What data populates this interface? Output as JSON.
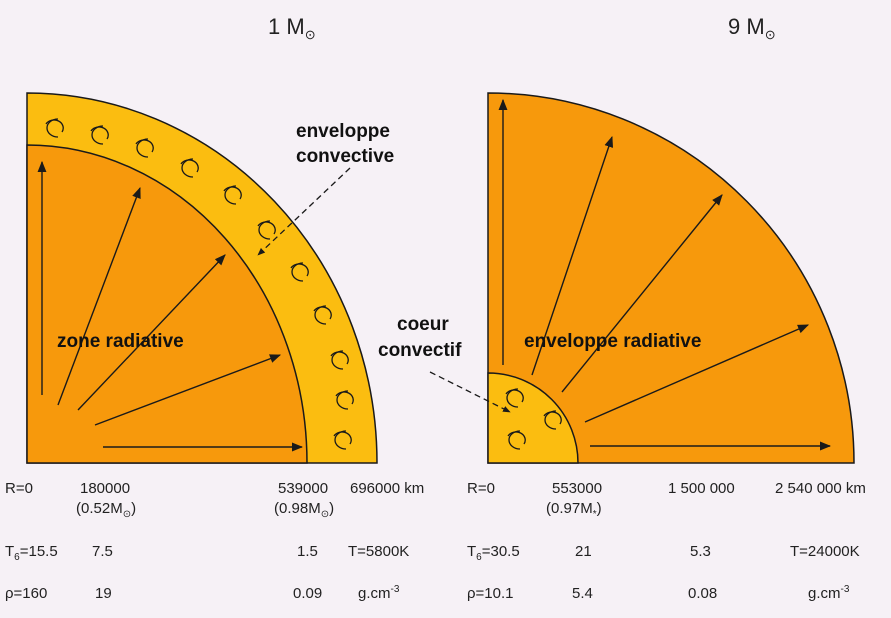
{
  "colors": {
    "background": "#f6f1f6",
    "radiative_zone": "#f7990c",
    "convective_zone": "#fbbd10",
    "outline": "#1a1a1a"
  },
  "left_star": {
    "title_main": "1 M",
    "sun_symbol": "⊙",
    "inner_label": "zone radiative",
    "outer_label_line1": "enveloppe",
    "outer_label_line2": "convective",
    "radii_row": {
      "r0": "R=0",
      "r1": "180000",
      "r1_mass": "(0.52M",
      "r1_mass_end": ")",
      "r2": "539000",
      "r2_mass": "(0.98M",
      "r2_mass_end": ")",
      "r3": "696000 km"
    },
    "temperature_row": {
      "t_symbol": "T",
      "t_sub": "6",
      "t0": "=15.5",
      "t1": "7.5",
      "t2": "1.5",
      "t3": "T=5800K"
    },
    "density_row": {
      "rho0": "ρ=160",
      "rho1": "19",
      "rho2": "0.09",
      "unit": "g.cm",
      "unit_exp": "-3"
    }
  },
  "right_star": {
    "title_main": "9 M",
    "sun_symbol": "⊙",
    "core_label_line1": "coeur",
    "core_label_line2": "convectif",
    "envelope_label": "enveloppe radiative",
    "radii_row": {
      "r0": "R=0",
      "r1": "553000",
      "r1_mass": "(0.97M",
      "r1_mass_sub": "*",
      "r1_mass_end": ")",
      "r2": "1 500 000",
      "r3": "2 540 000 km"
    },
    "temperature_row": {
      "t_symbol": "T",
      "t_sub": "6",
      "t0": "=30.5",
      "t1": "21",
      "t2": "5.3",
      "t3": "T=24000K"
    },
    "density_row": {
      "rho0": "ρ=10.1",
      "rho1": "5.4",
      "rho2": "0.08",
      "unit": "g.cm",
      "unit_exp": "-3"
    }
  }
}
